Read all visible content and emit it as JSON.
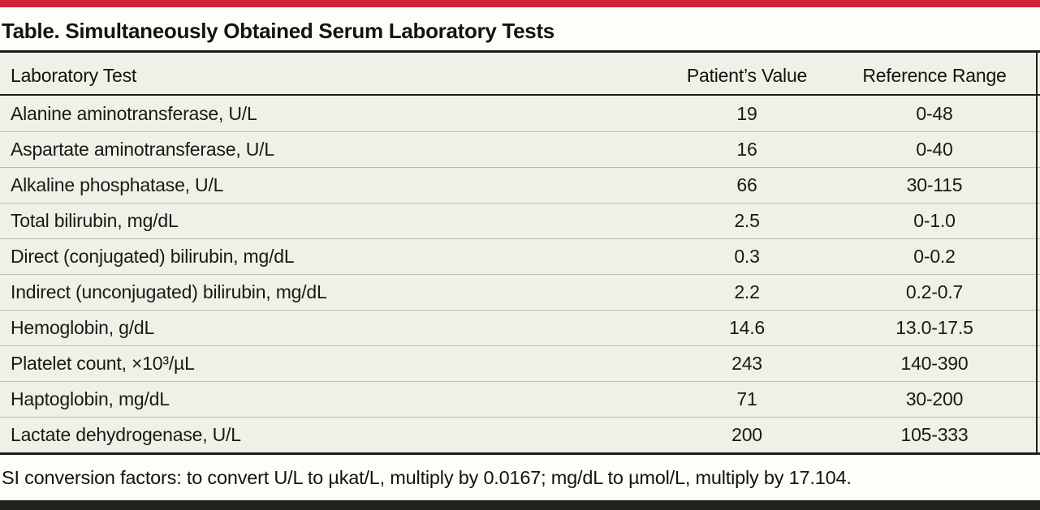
{
  "theme": {
    "accent_red": "#d2223a",
    "table_background": "#f1f0e8",
    "paper_background": "#fdfdfa",
    "rule_dark": "#1e1d18",
    "row_separator": "#bdbcae",
    "bottom_bar": "#22211f"
  },
  "table": {
    "title": "Table. Simultaneously Obtained Serum Laboratory Tests",
    "columns": [
      "Laboratory Test",
      "Patient’s Value",
      "Reference Range"
    ],
    "rows": [
      {
        "test": "Alanine aminotransferase, U/L",
        "value": "19",
        "range": "0-48"
      },
      {
        "test": "Aspartate aminotransferase, U/L",
        "value": "16",
        "range": "0-40"
      },
      {
        "test": "Alkaline phosphatase, U/L",
        "value": "66",
        "range": "30-115"
      },
      {
        "test": "Total bilirubin, mg/dL",
        "value": "2.5",
        "range": "0-1.0"
      },
      {
        "test": "Direct (conjugated) bilirubin, mg/dL",
        "value": "0.3",
        "range": "0-0.2"
      },
      {
        "test": "Indirect (unconjugated) bilirubin, mg/dL",
        "value": "2.2",
        "range": "0.2-0.7"
      },
      {
        "test": "Hemoglobin, g/dL",
        "value": "14.6",
        "range": "13.0-17.5"
      },
      {
        "test": "Platelet count, ×10³/µL",
        "value": "243",
        "range": "140-390"
      },
      {
        "test": "Haptoglobin, mg/dL",
        "value": "71",
        "range": "30-200"
      },
      {
        "test": "Lactate dehydrogenase, U/L",
        "value": "200",
        "range": "105-333"
      }
    ],
    "footnote": "SI conversion factors: to convert U/L to µkat/L, multiply by 0.0167; mg/dL to µmol/L, multiply by 17.104."
  }
}
